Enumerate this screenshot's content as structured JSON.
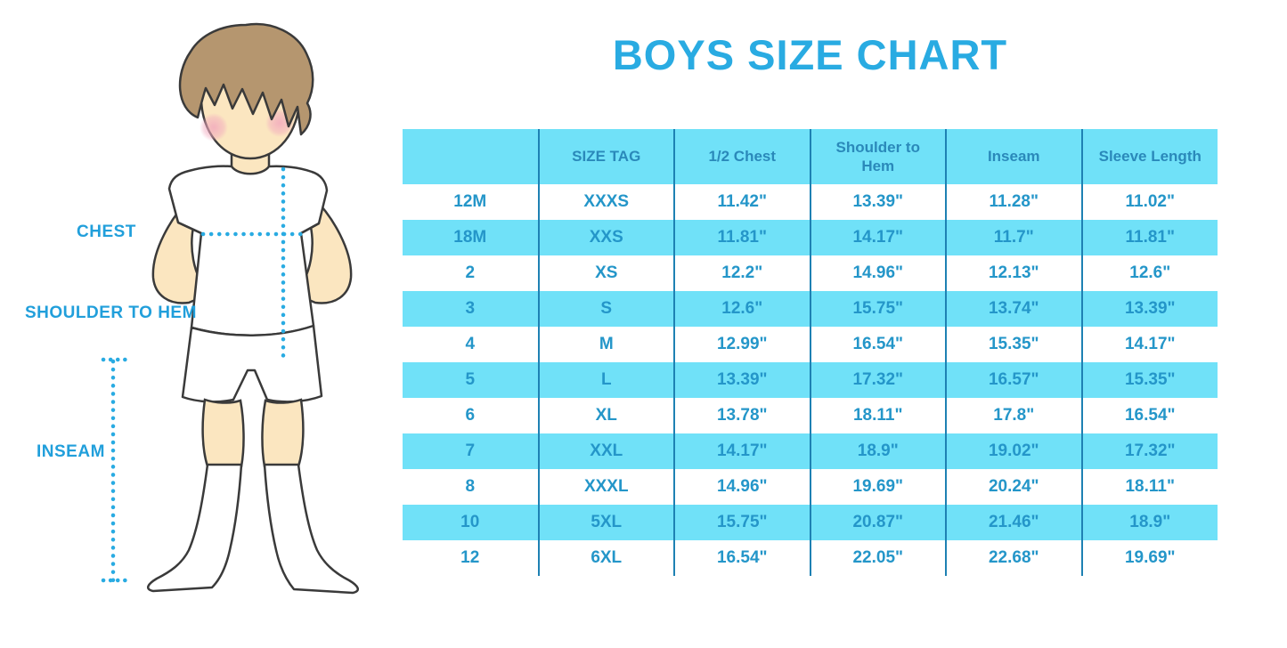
{
  "title": {
    "text": "BOYS SIZE CHART",
    "color": "#29ABE2"
  },
  "figure": {
    "labels": {
      "chest": "CHEST",
      "shoulder_to_hem": "SHOULDER TO HEM",
      "inseam": "INSEAM"
    },
    "colors": {
      "label_text": "#219FDB",
      "dotted_line": "#29ABE2",
      "hair": "#B5966F",
      "skin": "#FBE6C0",
      "cheek": "#F2A9BE",
      "outline": "#3A3A3A",
      "clothing": "#FFFFFF"
    }
  },
  "chart_data": {
    "type": "table",
    "title": "BOYS SIZE CHART",
    "units": "inches",
    "columns": [
      "",
      "SIZE TAG",
      "1/2 Chest",
      "Shoulder to Hem",
      "Inseam",
      "Sleeve Length"
    ],
    "rows": [
      [
        "12M",
        "XXXS",
        "11.42\"",
        "13.39\"",
        "11.28\"",
        "11.02\""
      ],
      [
        "18M",
        "XXS",
        "11.81\"",
        "14.17\"",
        "11.7\"",
        "11.81\""
      ],
      [
        "2",
        "XS",
        "12.2\"",
        "14.96\"",
        "12.13\"",
        "12.6\""
      ],
      [
        "3",
        "S",
        "12.6\"",
        "15.75\"",
        "13.74\"",
        "13.39\""
      ],
      [
        "4",
        "M",
        "12.99\"",
        "16.54\"",
        "15.35\"",
        "14.17\""
      ],
      [
        "5",
        "L",
        "13.39\"",
        "17.32\"",
        "16.57\"",
        "15.35\""
      ],
      [
        "6",
        "XL",
        "13.78\"",
        "18.11\"",
        "17.8\"",
        "16.54\""
      ],
      [
        "7",
        "XXL",
        "14.17\"",
        "18.9\"",
        "19.02\"",
        "17.32\""
      ],
      [
        "8",
        "XXXL",
        "14.96\"",
        "19.69\"",
        "20.24\"",
        "18.11\""
      ],
      [
        "10",
        "5XL",
        "15.75\"",
        "20.87\"",
        "21.46\"",
        "18.9\""
      ],
      [
        "12",
        "6XL",
        "16.54\"",
        "22.05\"",
        "22.68\"",
        "19.69\""
      ]
    ],
    "shaded_row_indices": [
      1,
      3,
      5,
      7,
      9
    ],
    "colors": {
      "header_bg": "#70E1F8",
      "row_shade": "#70E1F8",
      "divider": "#1E81B3",
      "text": "#2496C9",
      "header_text": "#2A89BA"
    },
    "legend_position": "none",
    "grid": "vertical-dividers-only"
  }
}
